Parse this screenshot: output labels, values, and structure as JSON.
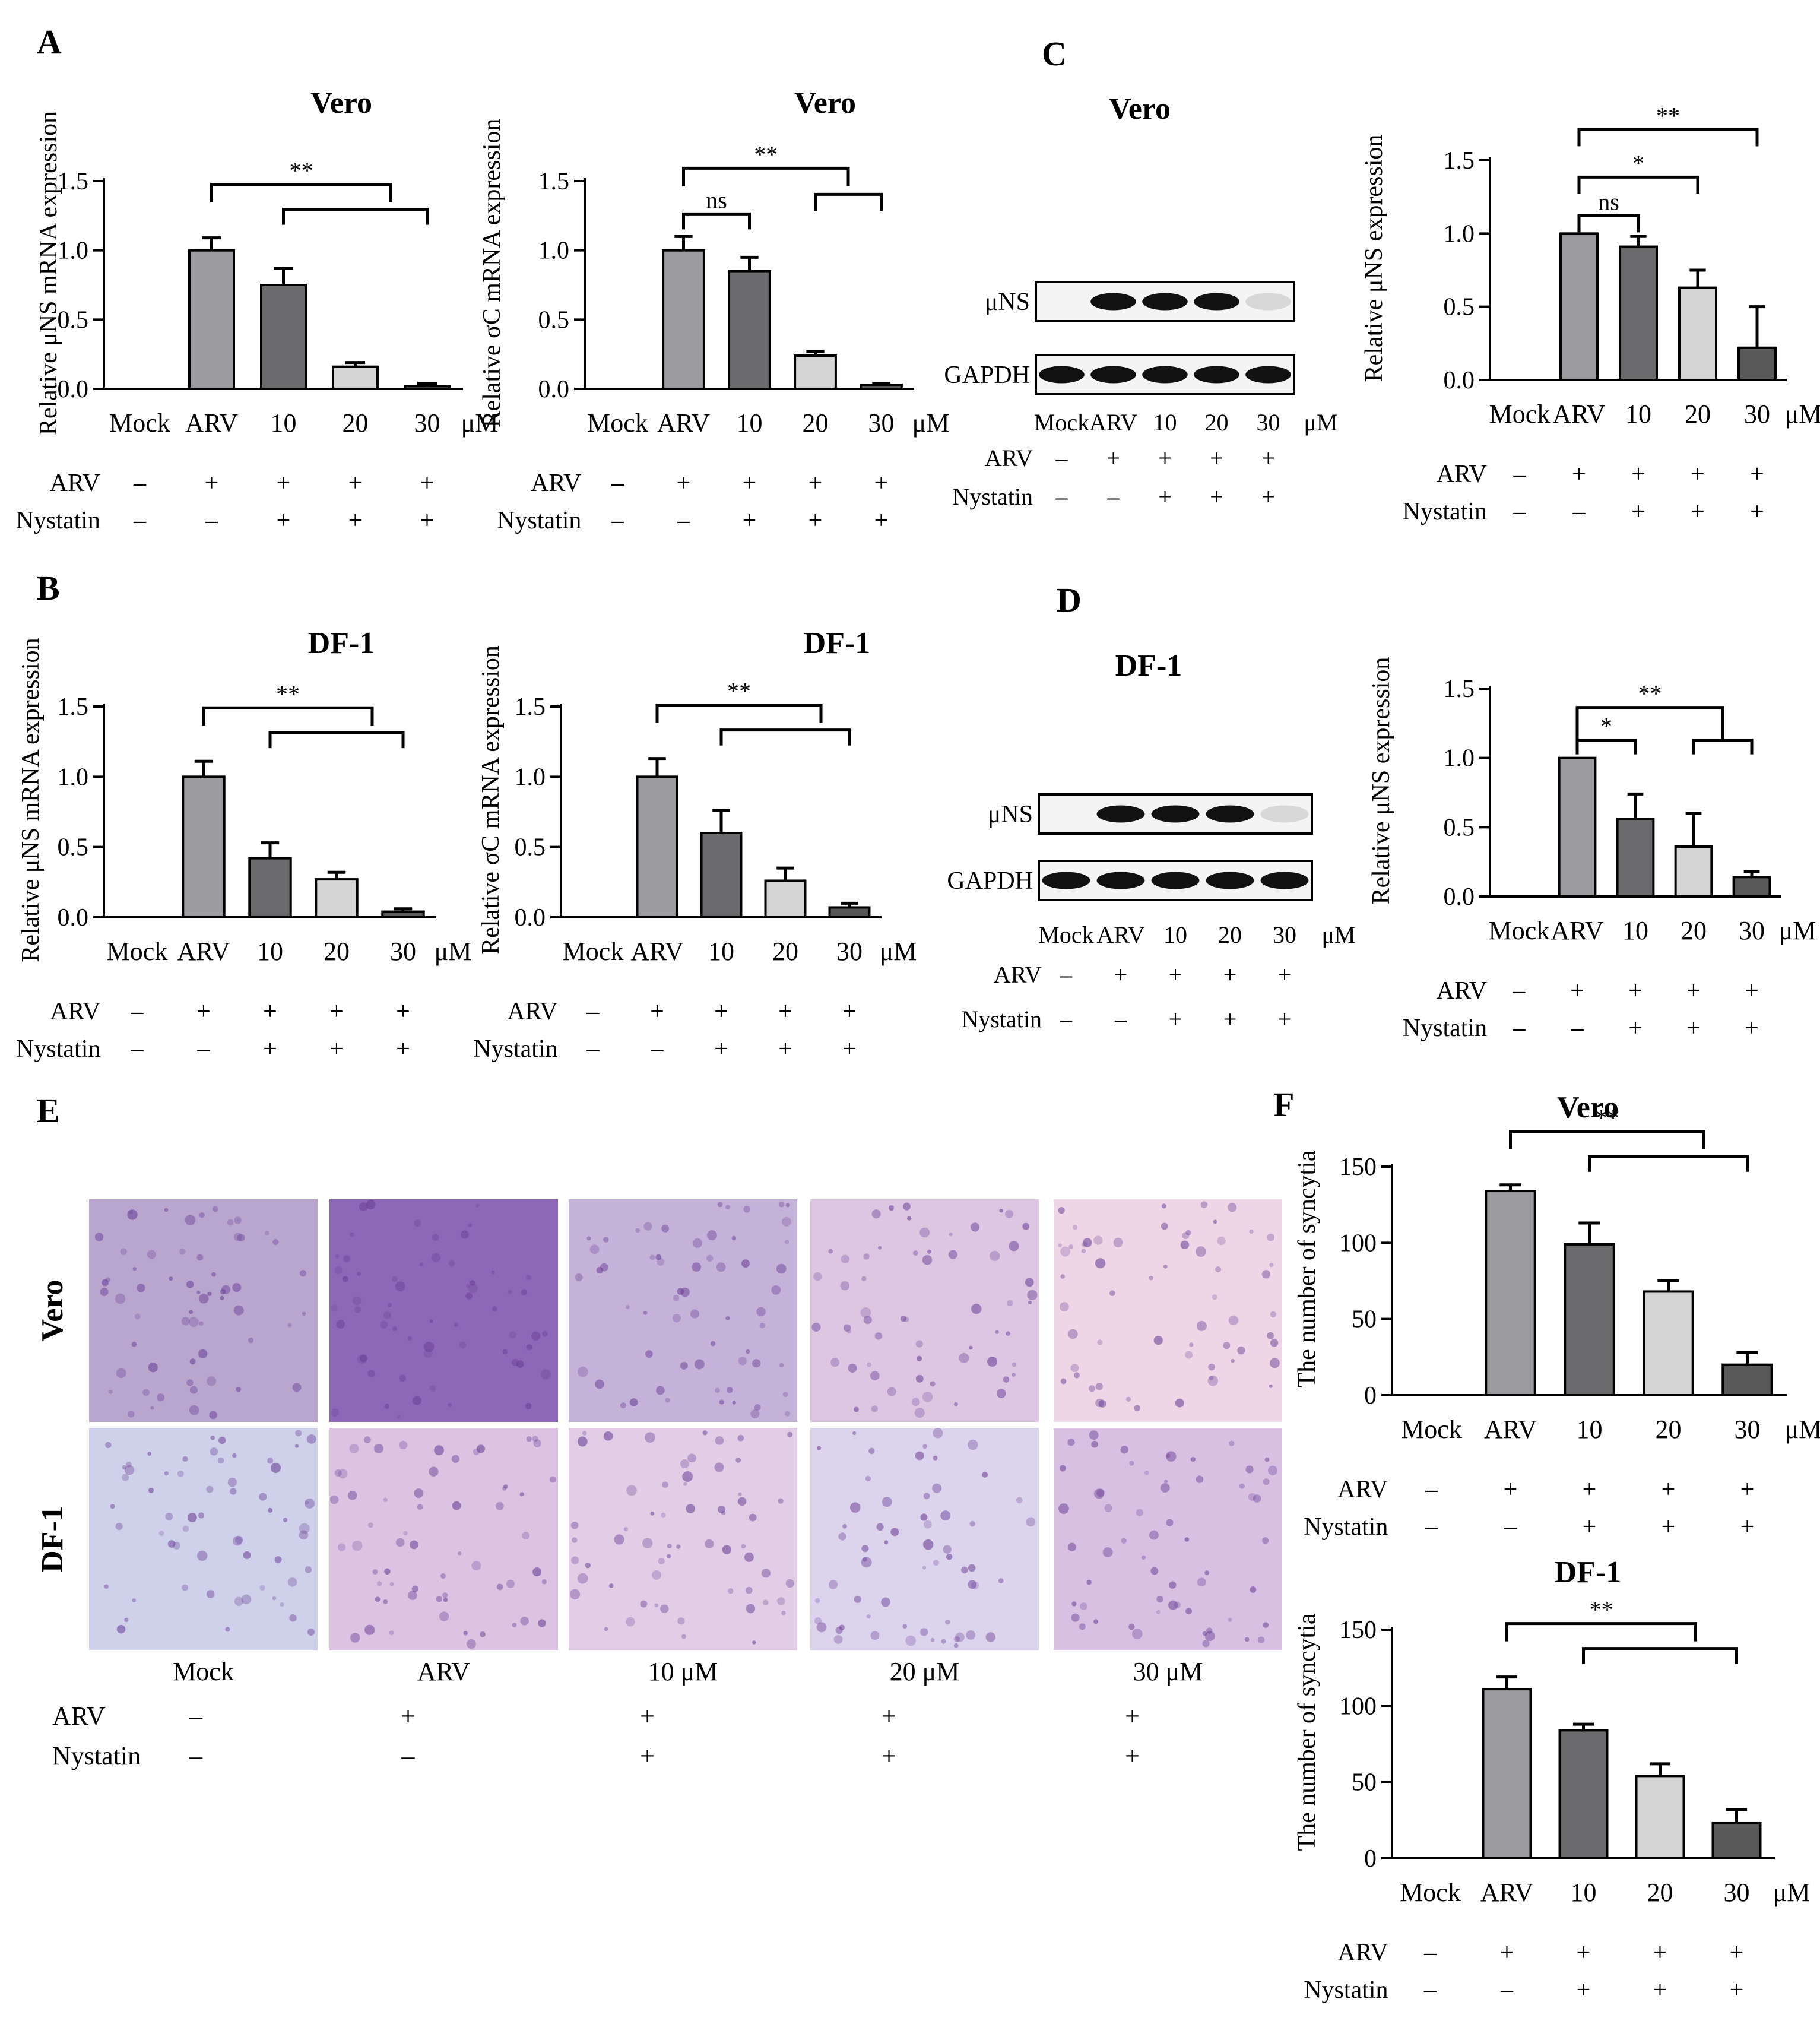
{
  "panel_letters": [
    "A",
    "B",
    "C",
    "D",
    "E",
    "F"
  ],
  "axis_unit": "μM",
  "treatment_rows": [
    "ARV",
    "Nystatin"
  ],
  "treatment_signs": {
    "ARV": [
      "–",
      "+",
      "+",
      "+",
      "+"
    ],
    "Nystatin": [
      "–",
      "–",
      "+",
      "+",
      "+"
    ]
  },
  "bar_colors": [
    "#9b9b9f",
    "#6b6b6e",
    "#d4d4d4",
    "#595959"
  ],
  "blots": [
    {
      "title": "Vero",
      "rows": [
        "μNS",
        "GAPDH"
      ],
      "lanes": [
        "Mock",
        "ARV",
        "10",
        "20",
        "30"
      ],
      "unit": "μM"
    },
    {
      "title": "DF-1",
      "rows": [
        "μNS",
        "GAPDH"
      ],
      "lanes": [
        "Mock",
        "ARV",
        "10",
        "20",
        "30"
      ],
      "unit": "μM"
    }
  ],
  "micrographs": {
    "row_labels": [
      "Vero",
      "DF-1"
    ],
    "col_labels": [
      "Mock",
      "ARV",
      "10 μM",
      "20 μM",
      "30 μM"
    ],
    "tints": [
      [
        "#b9a6cf",
        "#8e68b8",
        "#c5b2d8",
        "#dcc6e2",
        "#efd6e6"
      ],
      [
        "#cfd1ea",
        "#dcc3e2",
        "#e2cde6",
        "#dcd3ec",
        "#d8c0e2"
      ]
    ]
  },
  "chart_data": [
    {
      "id": "A1",
      "type": "bar",
      "title": "Vero",
      "ylabel": "Relative μNS mRNA expression",
      "categories": [
        "Mock",
        "ARV",
        "10",
        "20",
        "30"
      ],
      "values": [
        0,
        1.0,
        0.75,
        0.16,
        0.02
      ],
      "errors": [
        0,
        0.09,
        0.12,
        0.03,
        0.02
      ],
      "ylim": [
        0,
        1.5
      ],
      "yticks": [
        "0.0",
        "0.5",
        "1.0",
        "1.5"
      ],
      "sig": [
        "**"
      ]
    },
    {
      "id": "A2",
      "type": "bar",
      "title": "Vero",
      "ylabel": "Relative σC mRNA expression",
      "categories": [
        "Mock",
        "ARV",
        "10",
        "20",
        "30"
      ],
      "values": [
        0,
        1.0,
        0.85,
        0.24,
        0.03
      ],
      "errors": [
        0,
        0.1,
        0.1,
        0.03,
        0.01
      ],
      "ylim": [
        0,
        1.5
      ],
      "yticks": [
        "0.0",
        "0.5",
        "1.0",
        "1.5"
      ],
      "sig": [
        "ns",
        "**"
      ]
    },
    {
      "id": "C",
      "type": "bar",
      "title": "",
      "ylabel": "Relative μNS expression",
      "categories": [
        "Mock",
        "ARV",
        "10",
        "20",
        "30"
      ],
      "values": [
        0,
        1.0,
        0.91,
        0.63,
        0.22
      ],
      "errors": [
        0,
        0,
        0.07,
        0.12,
        0.28
      ],
      "ylim": [
        0,
        1.5
      ],
      "yticks": [
        "0.0",
        "0.5",
        "1.0",
        "1.5"
      ],
      "sig": [
        "ns",
        "*",
        "**"
      ]
    },
    {
      "id": "B1",
      "type": "bar",
      "title": "DF-1",
      "ylabel": "Relative μNS mRNA expression",
      "categories": [
        "Mock",
        "ARV",
        "10",
        "20",
        "30"
      ],
      "values": [
        0,
        1.0,
        0.42,
        0.27,
        0.04
      ],
      "errors": [
        0,
        0.11,
        0.11,
        0.05,
        0.02
      ],
      "ylim": [
        0,
        1.5
      ],
      "yticks": [
        "0.0",
        "0.5",
        "1.0",
        "1.5"
      ],
      "sig": [
        "**"
      ]
    },
    {
      "id": "B2",
      "type": "bar",
      "title": "DF-1",
      "ylabel": "Relative σC mRNA expression",
      "categories": [
        "Mock",
        "ARV",
        "10",
        "20",
        "30"
      ],
      "values": [
        0,
        1.0,
        0.6,
        0.26,
        0.07
      ],
      "errors": [
        0,
        0.13,
        0.16,
        0.09,
        0.03
      ],
      "ylim": [
        0,
        1.5
      ],
      "yticks": [
        "0.0",
        "0.5",
        "1.0",
        "1.5"
      ],
      "sig": [
        "**"
      ]
    },
    {
      "id": "D",
      "type": "bar",
      "title": "",
      "ylabel": "Relative μNS expression",
      "categories": [
        "Mock",
        "ARV",
        "10",
        "20",
        "30"
      ],
      "values": [
        0,
        1.0,
        0.56,
        0.36,
        0.14
      ],
      "errors": [
        0,
        0,
        0.18,
        0.24,
        0.04
      ],
      "ylim": [
        0,
        1.5
      ],
      "yticks": [
        "0.0",
        "0.5",
        "1.0",
        "1.5"
      ],
      "sig": [
        "*",
        "**"
      ]
    },
    {
      "id": "F1",
      "type": "bar",
      "title": "Vero",
      "ylabel": "The  number of syncytia",
      "categories": [
        "Mock",
        "ARV",
        "10",
        "20",
        "30"
      ],
      "values": [
        0,
        134,
        99,
        68,
        20
      ],
      "errors": [
        0,
        4,
        14,
        7,
        8
      ],
      "ylim": [
        0,
        150
      ],
      "yticks": [
        "0",
        "50",
        "100",
        "150"
      ],
      "sig": [
        "**"
      ]
    },
    {
      "id": "F2",
      "type": "bar",
      "title": "DF-1",
      "ylabel": "The  number of syncytia",
      "categories": [
        "Mock",
        "ARV",
        "10",
        "20",
        "30"
      ],
      "values": [
        0,
        111,
        84,
        54,
        23
      ],
      "errors": [
        0,
        8,
        4,
        8,
        9
      ],
      "ylim": [
        0,
        150
      ],
      "yticks": [
        "0",
        "50",
        "100",
        "150"
      ],
      "sig": [
        "**"
      ]
    }
  ]
}
